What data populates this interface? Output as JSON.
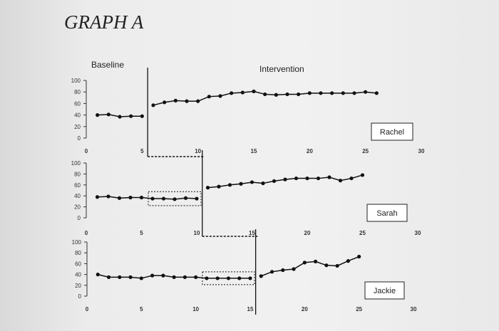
{
  "page_title": "GRAPH A",
  "chart_data": {
    "type": "line",
    "phase_labels": {
      "baseline": "Baseline",
      "intervention": "Intervention"
    },
    "yticks": [
      0,
      20,
      40,
      60,
      80,
      100
    ],
    "xticks": [
      0,
      5,
      10,
      15,
      20,
      25,
      30
    ],
    "ylim": [
      0,
      100
    ],
    "xlim": [
      0,
      30
    ],
    "colors": {
      "line": "#111111",
      "axis": "#333333"
    },
    "panels": [
      {
        "name": "Rachel",
        "phase_change_after": 5,
        "highlight_sessions": [],
        "x": [
          1,
          2,
          3,
          4,
          5,
          6,
          7,
          8,
          9,
          10,
          11,
          12,
          13,
          14,
          15,
          16,
          17,
          18,
          19,
          20,
          21,
          22,
          23,
          24,
          25,
          26
        ],
        "values": [
          40,
          41,
          37,
          38,
          38,
          57,
          62,
          65,
          64,
          64,
          72,
          73,
          78,
          79,
          81,
          76,
          75,
          76,
          76,
          78,
          78,
          78,
          78,
          78,
          80,
          78
        ]
      },
      {
        "name": "Sarah",
        "phase_change_after": 10,
        "highlight_sessions": [
          6,
          7,
          8,
          9,
          10
        ],
        "x": [
          1,
          2,
          3,
          4,
          5,
          6,
          7,
          8,
          9,
          10,
          11,
          12,
          13,
          14,
          15,
          16,
          17,
          18,
          19,
          20,
          21,
          22,
          23,
          24,
          25
        ],
        "values": [
          38,
          39,
          36,
          37,
          37,
          35,
          35,
          34,
          36,
          35,
          55,
          57,
          60,
          62,
          65,
          63,
          67,
          70,
          72,
          72,
          72,
          74,
          68,
          72,
          78
        ]
      },
      {
        "name": "Jackie",
        "phase_change_after": 15,
        "highlight_sessions": [
          11,
          12,
          13,
          14,
          15
        ],
        "x": [
          1,
          2,
          3,
          4,
          5,
          6,
          7,
          8,
          9,
          10,
          11,
          12,
          13,
          14,
          15,
          16,
          17,
          18,
          19,
          20,
          21,
          22,
          23,
          24,
          25
        ],
        "values": [
          40,
          35,
          35,
          35,
          33,
          38,
          38,
          35,
          35,
          35,
          33,
          33,
          33,
          33,
          33,
          37,
          45,
          48,
          50,
          62,
          64,
          57,
          56,
          65,
          73
        ]
      }
    ]
  }
}
